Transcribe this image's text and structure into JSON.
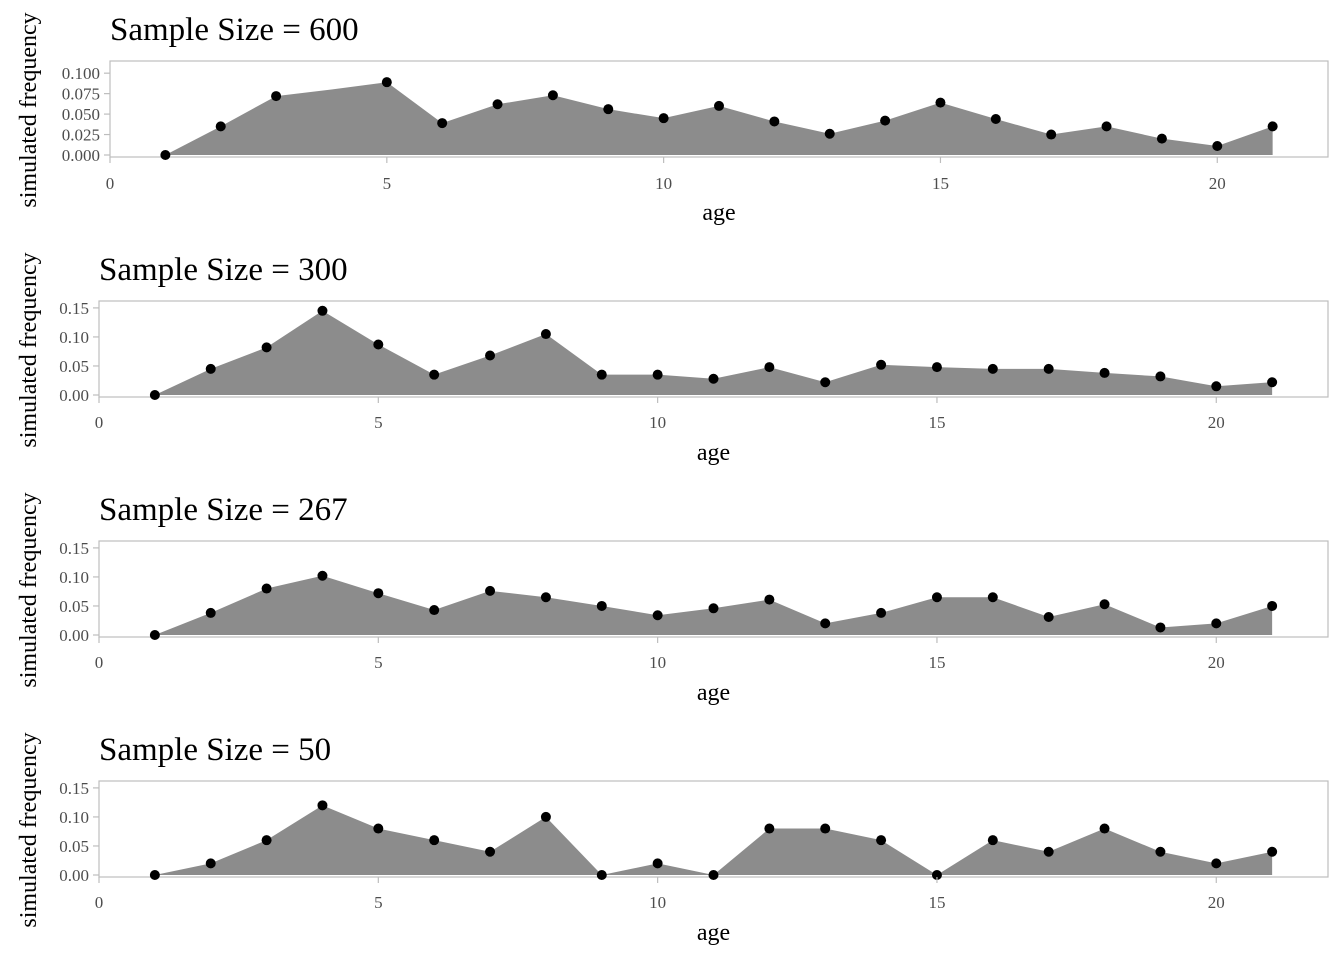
{
  "colors": {
    "area": "#8c8c8c",
    "point": "#000000",
    "frame": "#bdbdbd",
    "tick_text": "#4d4d4d"
  },
  "chart_data": [
    {
      "type": "area",
      "title": "Sample Size = 600",
      "xlabel": "age",
      "ylabel": "simulated frequency",
      "xlim": [
        0,
        22
      ],
      "ylim": [
        0,
        0.11
      ],
      "xticks": [
        0,
        5,
        10,
        15,
        20
      ],
      "yticks": [
        0.0,
        0.025,
        0.05,
        0.075,
        0.1
      ],
      "ytick_labels": [
        "0.000",
        "0.025",
        "0.050",
        "0.075",
        "0.100"
      ],
      "x": [
        1,
        2,
        3,
        4,
        5,
        6,
        7,
        8,
        9,
        10,
        11,
        12,
        13,
        14,
        15,
        16,
        17,
        18,
        19,
        20,
        21
      ],
      "values": [
        0.0,
        0.035,
        0.072,
        0.08,
        0.089,
        0.039,
        0.062,
        0.073,
        0.056,
        0.045,
        0.06,
        0.041,
        0.026,
        0.042,
        0.064,
        0.044,
        0.025,
        0.035,
        0.02,
        0.011,
        0.035
      ],
      "points_x": [
        1,
        2,
        3,
        5,
        6,
        7,
        8,
        9,
        10,
        11,
        12,
        13,
        14,
        15,
        16,
        17,
        18,
        19,
        20,
        21
      ],
      "points_y": [
        0.0,
        0.035,
        0.072,
        0.089,
        0.039,
        0.062,
        0.073,
        0.056,
        0.045,
        0.06,
        0.041,
        0.026,
        0.042,
        0.064,
        0.044,
        0.025,
        0.035,
        0.02,
        0.011,
        0.035
      ]
    },
    {
      "type": "area",
      "title": "Sample Size = 300",
      "xlabel": "age",
      "ylabel": "simulated frequency",
      "xlim": [
        0,
        22
      ],
      "ylim": [
        0,
        0.155
      ],
      "xticks": [
        0,
        5,
        10,
        15,
        20
      ],
      "yticks": [
        0.0,
        0.05,
        0.1,
        0.15
      ],
      "ytick_labels": [
        "0.00",
        "0.05",
        "0.10",
        "0.15"
      ],
      "x": [
        1,
        2,
        3,
        4,
        5,
        6,
        7,
        8,
        9,
        10,
        11,
        12,
        13,
        14,
        15,
        16,
        17,
        18,
        19,
        20,
        21
      ],
      "values": [
        0.0,
        0.045,
        0.082,
        0.145,
        0.087,
        0.035,
        0.068,
        0.105,
        0.035,
        0.035,
        0.028,
        0.048,
        0.022,
        0.052,
        0.048,
        0.045,
        0.045,
        0.038,
        0.032,
        0.015,
        0.022
      ],
      "points_x": [
        1,
        2,
        3,
        4,
        5,
        6,
        7,
        8,
        9,
        10,
        11,
        12,
        13,
        14,
        15,
        16,
        17,
        18,
        19,
        20,
        21
      ],
      "points_y": [
        0.0,
        0.045,
        0.082,
        0.145,
        0.087,
        0.035,
        0.068,
        0.105,
        0.035,
        0.035,
        0.028,
        0.048,
        0.022,
        0.052,
        0.048,
        0.045,
        0.045,
        0.038,
        0.032,
        0.015,
        0.022
      ]
    },
    {
      "type": "area",
      "title": "Sample Size = 267",
      "xlabel": "age",
      "ylabel": "simulated frequency",
      "xlim": [
        0,
        22
      ],
      "ylim": [
        0,
        0.155
      ],
      "xticks": [
        0,
        5,
        10,
        15,
        20
      ],
      "yticks": [
        0.0,
        0.05,
        0.1,
        0.15
      ],
      "ytick_labels": [
        "0.00",
        "0.05",
        "0.10",
        "0.15"
      ],
      "x": [
        1,
        2,
        3,
        4,
        5,
        6,
        7,
        8,
        9,
        10,
        11,
        12,
        13,
        14,
        15,
        16,
        17,
        18,
        19,
        20,
        21
      ],
      "values": [
        0.0,
        0.038,
        0.08,
        0.102,
        0.072,
        0.043,
        0.076,
        0.065,
        0.05,
        0.034,
        0.046,
        0.061,
        0.02,
        0.038,
        0.065,
        0.065,
        0.031,
        0.053,
        0.013,
        0.02,
        0.05
      ],
      "points_x": [
        1,
        2,
        3,
        4,
        5,
        6,
        7,
        8,
        9,
        10,
        11,
        12,
        13,
        14,
        15,
        16,
        17,
        18,
        19,
        20,
        21
      ],
      "points_y": [
        0.0,
        0.038,
        0.08,
        0.102,
        0.072,
        0.043,
        0.076,
        0.065,
        0.05,
        0.034,
        0.046,
        0.061,
        0.02,
        0.038,
        0.065,
        0.065,
        0.031,
        0.053,
        0.013,
        0.02,
        0.05
      ]
    },
    {
      "type": "area",
      "title": "Sample Size = 50",
      "xlabel": "age",
      "ylabel": "simulated frequency",
      "xlim": [
        0,
        22
      ],
      "ylim": [
        0,
        0.155
      ],
      "xticks": [
        0,
        5,
        10,
        15,
        20
      ],
      "yticks": [
        0.0,
        0.05,
        0.1,
        0.15
      ],
      "ytick_labels": [
        "0.00",
        "0.05",
        "0.10",
        "0.15"
      ],
      "x": [
        1,
        2,
        3,
        4,
        5,
        6,
        7,
        8,
        9,
        10,
        11,
        12,
        13,
        14,
        15,
        16,
        17,
        18,
        19,
        20,
        21
      ],
      "values": [
        0.0,
        0.02,
        0.06,
        0.12,
        0.08,
        0.06,
        0.04,
        0.1,
        0.0,
        0.02,
        0.0,
        0.08,
        0.08,
        0.06,
        0.0,
        0.06,
        0.04,
        0.08,
        0.04,
        0.02,
        0.04
      ],
      "points_x": [
        1,
        2,
        3,
        4,
        5,
        6,
        7,
        8,
        9,
        10,
        11,
        12,
        13,
        14,
        15,
        16,
        17,
        18,
        19,
        20,
        21
      ],
      "points_y": [
        0.0,
        0.02,
        0.06,
        0.12,
        0.08,
        0.06,
        0.04,
        0.1,
        0.0,
        0.02,
        0.0,
        0.08,
        0.08,
        0.06,
        0.0,
        0.06,
        0.04,
        0.08,
        0.04,
        0.02,
        0.04
      ]
    }
  ]
}
